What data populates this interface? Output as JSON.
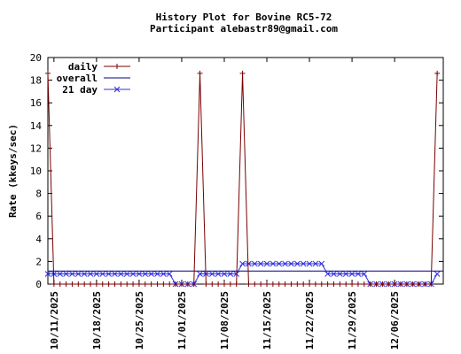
{
  "chart_data": {
    "type": "line",
    "title": "History Plot for Bovine RC5-72",
    "subtitle": "Participant alebastr89@gmail.com",
    "ylabel": "Rate (kkeys/sec)",
    "xlabel": "",
    "ylim": [
      0,
      20
    ],
    "yticks": [
      0,
      2,
      4,
      6,
      8,
      10,
      12,
      14,
      16,
      18,
      20
    ],
    "xlim": [
      "2025-10-10",
      "2025-12-14"
    ],
    "xticks": [
      "2025-10-11",
      "2025-10-18",
      "2025-10-25",
      "2025-11-01",
      "2025-11-08",
      "2025-11-15",
      "2025-11-22",
      "2025-11-29",
      "2025-12-06"
    ],
    "xtick_labels": [
      "10/11/2025",
      "10/18/2025",
      "10/25/2025",
      "11/01/2025",
      "11/08/2025",
      "11/15/2025",
      "11/22/2025",
      "11/29/2025",
      "12/06/2025"
    ],
    "grid": false,
    "legend_position": "top-left",
    "series": [
      {
        "name": "daily",
        "color": "#7a0000",
        "marker": "plus",
        "points": [
          [
            "2025-10-10",
            18.6
          ],
          [
            "2025-10-11",
            0
          ],
          [
            "2025-10-12",
            0
          ],
          [
            "2025-10-13",
            0
          ],
          [
            "2025-10-14",
            0
          ],
          [
            "2025-10-15",
            0
          ],
          [
            "2025-10-16",
            0
          ],
          [
            "2025-10-17",
            0
          ],
          [
            "2025-10-18",
            0
          ],
          [
            "2025-10-19",
            0
          ],
          [
            "2025-10-20",
            0
          ],
          [
            "2025-10-21",
            0
          ],
          [
            "2025-10-22",
            0
          ],
          [
            "2025-10-23",
            0
          ],
          [
            "2025-10-24",
            0
          ],
          [
            "2025-10-25",
            0
          ],
          [
            "2025-10-26",
            0
          ],
          [
            "2025-10-27",
            0
          ],
          [
            "2025-10-28",
            0
          ],
          [
            "2025-10-29",
            0
          ],
          [
            "2025-10-30",
            0
          ],
          [
            "2025-10-31",
            0
          ],
          [
            "2025-11-01",
            0
          ],
          [
            "2025-11-02",
            0
          ],
          [
            "2025-11-03",
            0
          ],
          [
            "2025-11-04",
            18.6
          ],
          [
            "2025-11-05",
            0
          ],
          [
            "2025-11-06",
            0
          ],
          [
            "2025-11-07",
            0
          ],
          [
            "2025-11-08",
            0
          ],
          [
            "2025-11-09",
            0
          ],
          [
            "2025-11-10",
            0
          ],
          [
            "2025-11-11",
            18.6
          ],
          [
            "2025-11-12",
            0
          ],
          [
            "2025-11-13",
            0
          ],
          [
            "2025-11-14",
            0
          ],
          [
            "2025-11-15",
            0
          ],
          [
            "2025-11-16",
            0
          ],
          [
            "2025-11-17",
            0
          ],
          [
            "2025-11-18",
            0
          ],
          [
            "2025-11-19",
            0
          ],
          [
            "2025-11-20",
            0
          ],
          [
            "2025-11-21",
            0
          ],
          [
            "2025-11-22",
            0
          ],
          [
            "2025-11-23",
            0
          ],
          [
            "2025-11-24",
            0
          ],
          [
            "2025-11-25",
            0
          ],
          [
            "2025-11-26",
            0
          ],
          [
            "2025-11-27",
            0
          ],
          [
            "2025-11-28",
            0
          ],
          [
            "2025-11-29",
            0
          ],
          [
            "2025-11-30",
            0
          ],
          [
            "2025-12-01",
            0
          ],
          [
            "2025-12-02",
            0
          ],
          [
            "2025-12-03",
            0
          ],
          [
            "2025-12-04",
            0
          ],
          [
            "2025-12-05",
            0
          ],
          [
            "2025-12-06",
            0
          ],
          [
            "2025-12-07",
            0
          ],
          [
            "2025-12-08",
            0
          ],
          [
            "2025-12-09",
            0
          ],
          [
            "2025-12-10",
            0
          ],
          [
            "2025-12-11",
            0
          ],
          [
            "2025-12-12",
            0
          ],
          [
            "2025-12-13",
            18.6
          ]
        ]
      },
      {
        "name": "overall",
        "color": "#000080",
        "marker": "none",
        "points": [
          [
            "2025-10-10",
            1.15
          ],
          [
            "2025-12-14",
            1.15
          ]
        ]
      },
      {
        "name": "21 day",
        "color": "#3030e0",
        "marker": "x",
        "points": [
          [
            "2025-10-10",
            0.9
          ],
          [
            "2025-10-11",
            0.9
          ],
          [
            "2025-10-12",
            0.9
          ],
          [
            "2025-10-13",
            0.9
          ],
          [
            "2025-10-14",
            0.9
          ],
          [
            "2025-10-15",
            0.9
          ],
          [
            "2025-10-16",
            0.9
          ],
          [
            "2025-10-17",
            0.9
          ],
          [
            "2025-10-18",
            0.9
          ],
          [
            "2025-10-19",
            0.9
          ],
          [
            "2025-10-20",
            0.9
          ],
          [
            "2025-10-21",
            0.9
          ],
          [
            "2025-10-22",
            0.9
          ],
          [
            "2025-10-23",
            0.9
          ],
          [
            "2025-10-24",
            0.9
          ],
          [
            "2025-10-25",
            0.9
          ],
          [
            "2025-10-26",
            0.9
          ],
          [
            "2025-10-27",
            0.9
          ],
          [
            "2025-10-28",
            0.9
          ],
          [
            "2025-10-29",
            0.9
          ],
          [
            "2025-10-30",
            0.9
          ],
          [
            "2025-10-31",
            0.0
          ],
          [
            "2025-11-01",
            0.0
          ],
          [
            "2025-11-02",
            0.0
          ],
          [
            "2025-11-03",
            0.0
          ],
          [
            "2025-11-04",
            0.9
          ],
          [
            "2025-11-05",
            0.9
          ],
          [
            "2025-11-06",
            0.9
          ],
          [
            "2025-11-07",
            0.9
          ],
          [
            "2025-11-08",
            0.9
          ],
          [
            "2025-11-09",
            0.9
          ],
          [
            "2025-11-10",
            0.9
          ],
          [
            "2025-11-11",
            1.8
          ],
          [
            "2025-11-12",
            1.8
          ],
          [
            "2025-11-13",
            1.8
          ],
          [
            "2025-11-14",
            1.8
          ],
          [
            "2025-11-15",
            1.8
          ],
          [
            "2025-11-16",
            1.8
          ],
          [
            "2025-11-17",
            1.8
          ],
          [
            "2025-11-18",
            1.8
          ],
          [
            "2025-11-19",
            1.8
          ],
          [
            "2025-11-20",
            1.8
          ],
          [
            "2025-11-21",
            1.8
          ],
          [
            "2025-11-22",
            1.8
          ],
          [
            "2025-11-23",
            1.8
          ],
          [
            "2025-11-24",
            1.8
          ],
          [
            "2025-11-25",
            0.9
          ],
          [
            "2025-11-26",
            0.9
          ],
          [
            "2025-11-27",
            0.9
          ],
          [
            "2025-11-28",
            0.9
          ],
          [
            "2025-11-29",
            0.9
          ],
          [
            "2025-11-30",
            0.9
          ],
          [
            "2025-12-01",
            0.9
          ],
          [
            "2025-12-02",
            0.0
          ],
          [
            "2025-12-03",
            0.0
          ],
          [
            "2025-12-04",
            0.0
          ],
          [
            "2025-12-05",
            0.0
          ],
          [
            "2025-12-06",
            0.0
          ],
          [
            "2025-12-07",
            0.0
          ],
          [
            "2025-12-08",
            0.0
          ],
          [
            "2025-12-09",
            0.0
          ],
          [
            "2025-12-10",
            0.0
          ],
          [
            "2025-12-11",
            0.0
          ],
          [
            "2025-12-12",
            0.0
          ],
          [
            "2025-12-13",
            0.9
          ]
        ]
      }
    ]
  }
}
